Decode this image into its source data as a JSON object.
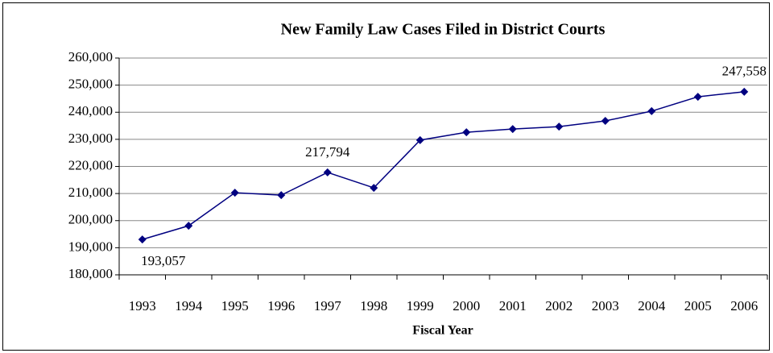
{
  "chart_data": {
    "type": "line",
    "title": "New Family Law Cases Filed in District Courts",
    "x_label": "Fiscal Year",
    "categories": [
      "1993",
      "1994",
      "1995",
      "1996",
      "1997",
      "1998",
      "1999",
      "2000",
      "2001",
      "2002",
      "2003",
      "2004",
      "2005",
      "2006"
    ],
    "series": [
      {
        "name": "New Family Law Cases",
        "color": "#000080",
        "values": [
          193057,
          198100,
          210300,
          209400,
          217794,
          212100,
          229700,
          232600,
          233800,
          234700,
          236800,
          240400,
          245700,
          247558
        ],
        "value_labels": [
          "193,057",
          null,
          null,
          null,
          "217,794",
          null,
          null,
          null,
          null,
          null,
          null,
          null,
          null,
          "247,558"
        ]
      }
    ],
    "ylim": [
      180000,
      260000
    ],
    "yticks": [
      {
        "value": 180000,
        "label": "180,000"
      },
      {
        "value": 190000,
        "label": "190,000"
      },
      {
        "value": 200000,
        "label": "200,000"
      },
      {
        "value": 210000,
        "label": "210,000"
      },
      {
        "value": 220000,
        "label": "220,000"
      },
      {
        "value": 230000,
        "label": "230,000"
      },
      {
        "value": 240000,
        "label": "240,000"
      },
      {
        "value": 250000,
        "label": "250,000"
      },
      {
        "value": 260000,
        "label": "260,000"
      }
    ],
    "grid": true
  }
}
